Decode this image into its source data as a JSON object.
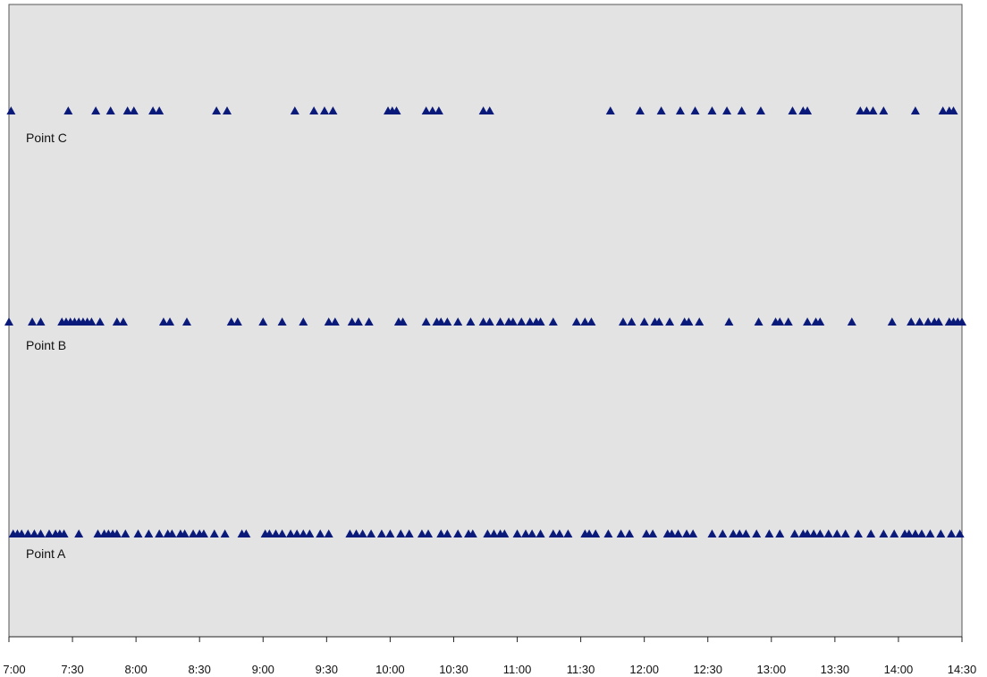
{
  "chart_data": {
    "type": "scatter",
    "title": "",
    "xlabel": "",
    "ylabel": "",
    "xlim": [
      "7:00",
      "14:30"
    ],
    "x_ticks": [
      "7:00",
      "7:30",
      "8:00",
      "8:30",
      "9:00",
      "9:30",
      "10:00",
      "10:30",
      "11:00",
      "11:30",
      "12:00",
      "12:30",
      "13:00",
      "13:30",
      "14:00",
      "14:30"
    ],
    "grid": false,
    "plot_background": "#e3e3e3",
    "marker": {
      "shape": "triangle",
      "color": "#0a1a7a"
    },
    "series": [
      {
        "name": "Point C",
        "x": [
          "7:01",
          "7:28",
          "7:41",
          "7:48",
          "7:56",
          "7:59",
          "8:08",
          "8:11",
          "8:38",
          "8:43",
          "9:15",
          "9:24",
          "9:29",
          "9:33",
          "9:59",
          "10:01",
          "10:03",
          "10:17",
          "10:20",
          "10:23",
          "10:44",
          "10:47",
          "11:44",
          "11:58",
          "12:08",
          "12:17",
          "12:24",
          "12:32",
          "12:39",
          "12:46",
          "12:55",
          "13:10",
          "13:15",
          "13:17",
          "13:42",
          "13:45",
          "13:48",
          "13:53",
          "14:08",
          "14:21",
          "14:24",
          "14:26"
        ]
      },
      {
        "name": "Point B",
        "x": [
          "7:00",
          "7:11",
          "7:15",
          "7:25",
          "7:27",
          "7:29",
          "7:31",
          "7:33",
          "7:35",
          "7:37",
          "7:39",
          "7:43",
          "7:51",
          "7:54",
          "8:13",
          "8:16",
          "8:24",
          "8:45",
          "8:48",
          "9:00",
          "9:09",
          "9:19",
          "9:31",
          "9:34",
          "9:42",
          "9:45",
          "9:50",
          "10:04",
          "10:06",
          "10:17",
          "10:22",
          "10:24",
          "10:27",
          "10:32",
          "10:38",
          "10:44",
          "10:47",
          "10:52",
          "10:56",
          "10:58",
          "11:02",
          "11:06",
          "11:09",
          "11:11",
          "11:17",
          "11:28",
          "11:32",
          "11:35",
          "11:50",
          "11:54",
          "12:00",
          "12:05",
          "12:07",
          "12:12",
          "12:19",
          "12:21",
          "12:26",
          "12:40",
          "12:54",
          "13:02",
          "13:04",
          "13:08",
          "13:17",
          "13:21",
          "13:23",
          "13:38",
          "13:57",
          "14:06",
          "14:10",
          "14:14",
          "14:17",
          "14:19",
          "14:24",
          "14:26",
          "14:28",
          "14:30"
        ]
      },
      {
        "name": "Point A",
        "x": [
          "7:02",
          "7:04",
          "7:06",
          "7:09",
          "7:12",
          "7:15",
          "7:19",
          "7:22",
          "7:24",
          "7:26",
          "7:33",
          "7:42",
          "7:45",
          "7:47",
          "7:49",
          "7:51",
          "7:55",
          "8:01",
          "8:06",
          "8:11",
          "8:15",
          "8:17",
          "8:21",
          "8:23",
          "8:27",
          "8:30",
          "8:32",
          "8:37",
          "8:42",
          "8:50",
          "8:52",
          "9:01",
          "9:03",
          "9:06",
          "9:09",
          "9:13",
          "9:16",
          "9:19",
          "9:22",
          "9:27",
          "9:31",
          "9:41",
          "9:44",
          "9:47",
          "9:51",
          "9:56",
          "10:00",
          "10:05",
          "10:09",
          "10:15",
          "10:18",
          "10:24",
          "10:27",
          "10:32",
          "10:37",
          "10:39",
          "10:46",
          "10:49",
          "10:52",
          "10:54",
          "11:00",
          "11:04",
          "11:07",
          "11:11",
          "11:17",
          "11:20",
          "11:24",
          "11:32",
          "11:34",
          "11:37",
          "11:43",
          "11:49",
          "11:53",
          "12:01",
          "12:04",
          "12:11",
          "12:13",
          "12:16",
          "12:20",
          "12:23",
          "12:32",
          "12:37",
          "12:42",
          "12:45",
          "12:48",
          "12:53",
          "12:59",
          "13:04",
          "13:11",
          "13:15",
          "13:17",
          "13:20",
          "13:23",
          "13:27",
          "13:31",
          "13:35",
          "13:41",
          "13:47",
          "13:53",
          "13:58",
          "14:03",
          "14:05",
          "14:08",
          "14:11",
          "14:15",
          "14:20",
          "14:25",
          "14:29"
        ]
      }
    ]
  }
}
